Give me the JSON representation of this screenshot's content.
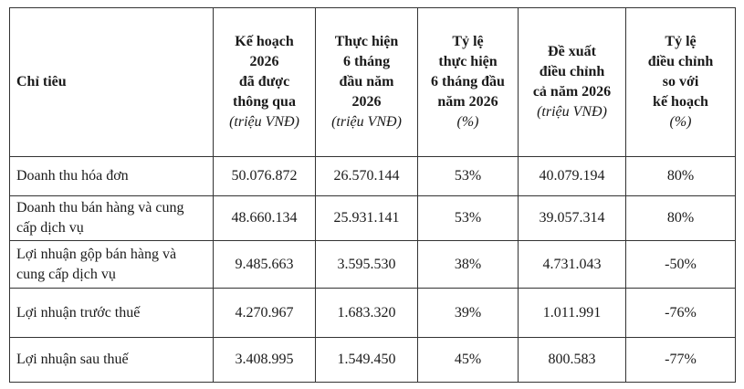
{
  "table": {
    "header": [
      {
        "lines": [
          "Chỉ tiêu"
        ]
      },
      {
        "lines": [
          "Kế hoạch",
          "2026",
          "đã được",
          "thông qua"
        ],
        "unit": "(triệu VNĐ)"
      },
      {
        "lines": [
          "Thực hiện",
          "6 tháng",
          "đầu năm",
          "2026"
        ],
        "unit": "(triệu VNĐ)"
      },
      {
        "lines": [
          "Tỷ lệ",
          "thực hiện",
          "6 tháng đầu",
          "năm 2026"
        ],
        "unit": "(%)"
      },
      {
        "lines": [
          "Đề xuất",
          "điều chỉnh",
          "cả năm 2026"
        ],
        "unit": "(triệu VNĐ)"
      },
      {
        "lines": [
          "Tỷ lệ",
          "điều chỉnh",
          "so với",
          "kế hoạch"
        ],
        "unit": "(%)"
      }
    ],
    "rows": [
      [
        "Doanh thu hóa đơn",
        "50.076.872",
        "26.570.144",
        "53%",
        "40.079.194",
        "80%"
      ],
      [
        "Doanh thu bán hàng và cung cấp dịch vụ",
        "48.660.134",
        "25.931.141",
        "53%",
        "39.057.314",
        "80%"
      ],
      [
        "Lợi nhuận gộp bán hàng và cung cấp dịch vụ",
        "9.485.663",
        "3.595.530",
        "38%",
        "4.731.043",
        "-50%"
      ],
      [
        "Lợi nhuận trước thuế",
        "4.270.967",
        "1.683.320",
        "39%",
        "1.011.991",
        "-76%"
      ],
      [
        "Lợi nhuận sau thuế",
        "3.408.995",
        "1.549.450",
        "45%",
        "800.583",
        "-77%"
      ]
    ]
  }
}
